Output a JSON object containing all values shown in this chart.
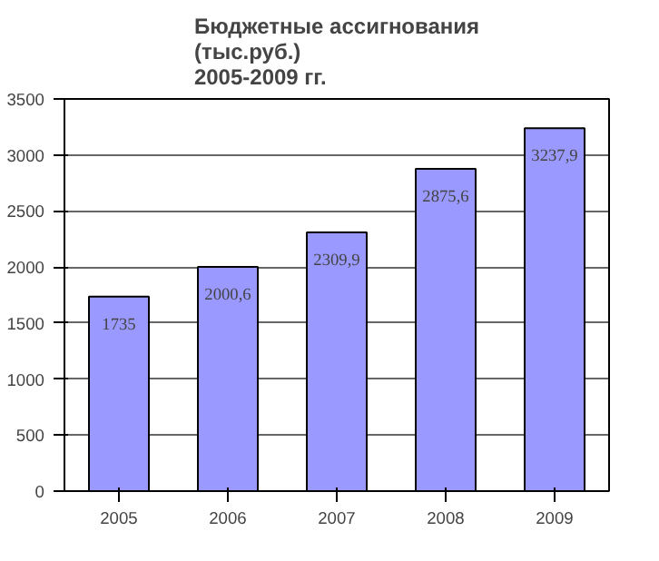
{
  "chart_data": {
    "type": "bar",
    "title": "Бюджетные ассигнования\n(тыс.руб.)\n2005-2009 гг.",
    "categories": [
      "2005",
      "2006",
      "2007",
      "2008",
      "2009"
    ],
    "values": [
      1735,
      2000.6,
      2309.9,
      2875.6,
      3237.9
    ],
    "value_labels": [
      "1735",
      "2000,6",
      "2309,9",
      "2875,6",
      "3237,9"
    ],
    "color": "#9999ff",
    "ylim": [
      0,
      3500
    ],
    "yticks": [
      0,
      500,
      1000,
      1500,
      2000,
      2500,
      3000,
      3500
    ],
    "grid": "y"
  }
}
